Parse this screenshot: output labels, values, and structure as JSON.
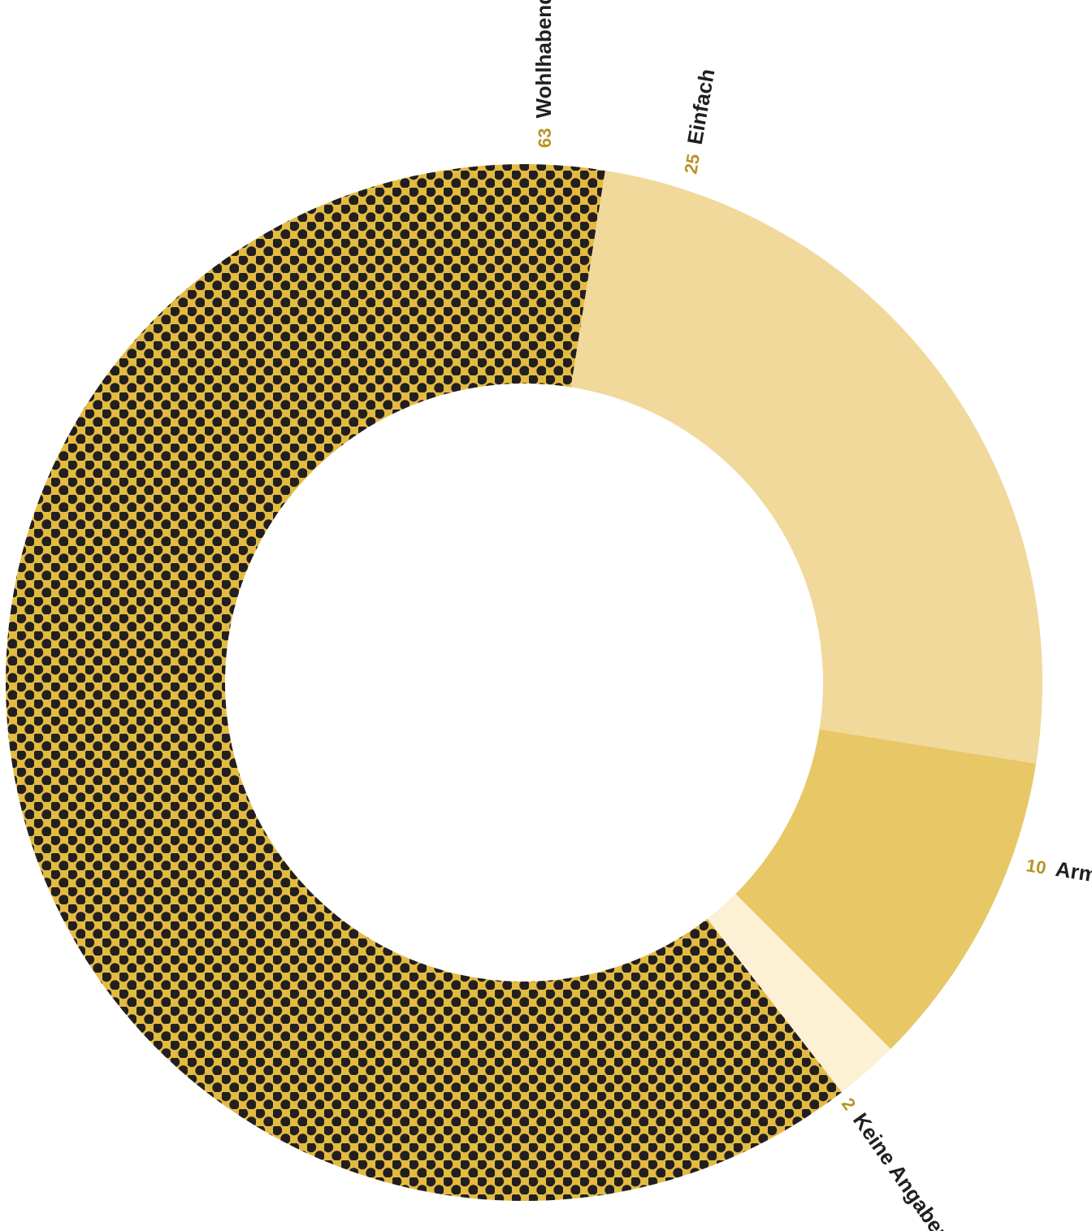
{
  "chart_data": {
    "type": "pie",
    "donut": true,
    "categories": [
      "Wohlhabend",
      "Einfach",
      "Arm",
      "Keine Angaben"
    ],
    "values": [
      63,
      25,
      10,
      2
    ],
    "colors": [
      "#e3bb41",
      "#f1d89b",
      "#e8c766",
      "#fcf0d5"
    ],
    "patterns": [
      "dots",
      "none",
      "none",
      "none"
    ],
    "dot_color": "#231f20",
    "value_label_color": "#b89426",
    "start_slice": "Wohlhabend",
    "slice_labels": [
      {
        "value": "63",
        "name": "Wohlhabend"
      },
      {
        "value": "25",
        "name": "Einfach"
      },
      {
        "value": "10",
        "name": "Arm"
      },
      {
        "value": "2",
        "name": "Keine Angaben"
      }
    ]
  }
}
